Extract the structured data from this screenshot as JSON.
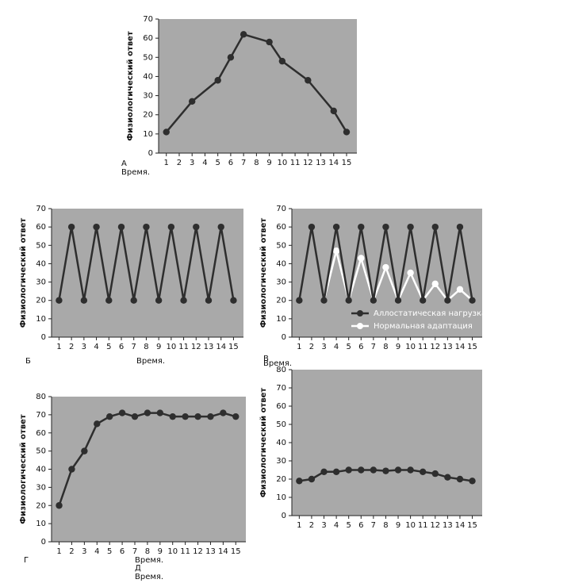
{
  "chart_data": [
    {
      "type": "line",
      "label": "А",
      "x_label": "Время.",
      "y_label": "Физиологический ответ",
      "x": [
        1,
        3,
        5,
        6,
        7,
        9,
        10,
        12,
        14,
        15
      ],
      "values": [
        11,
        27,
        38,
        50,
        62,
        58,
        48,
        38,
        22,
        11
      ],
      "color": "#2e2e2e",
      "xlim": [
        0.4,
        15.8
      ],
      "xticks": [
        1,
        2,
        3,
        4,
        5,
        6,
        7,
        8,
        9,
        10,
        11,
        12,
        13,
        14,
        15
      ],
      "ylim": [
        0,
        70
      ],
      "yticks": [
        0,
        10,
        20,
        30,
        40,
        50,
        60,
        70
      ]
    },
    {
      "type": "line",
      "label": "Б",
      "x_label": "Время.",
      "y_label": "Физиологический ответ",
      "x": [
        1,
        2,
        3,
        4,
        5,
        6,
        7,
        8,
        9,
        10,
        11,
        12,
        13,
        14,
        15
      ],
      "values": [
        20,
        60,
        20,
        60,
        20,
        60,
        20,
        60,
        20,
        60,
        20,
        60,
        20,
        60,
        20
      ],
      "color": "#2e2e2e",
      "xlim": [
        0.4,
        15.8
      ],
      "xticks": [
        1,
        2,
        3,
        4,
        5,
        6,
        7,
        8,
        9,
        10,
        11,
        12,
        13,
        14,
        15
      ],
      "ylim": [
        0,
        70
      ],
      "yticks": [
        0,
        10,
        20,
        30,
        40,
        50,
        60,
        70
      ]
    },
    {
      "type": "line",
      "label": "В",
      "x_label": "Время.",
      "y_label": "Физиологический ответ",
      "legend": "lower right",
      "x": [
        1,
        2,
        3,
        4,
        5,
        6,
        7,
        8,
        9,
        10,
        11,
        12,
        13,
        14,
        15
      ],
      "series": [
        {
          "name": "Аллостатическая нагрузка",
          "color": "#2e2e2e",
          "values": [
            20,
            60,
            20,
            60,
            20,
            60,
            20,
            60,
            20,
            60,
            20,
            60,
            20,
            60,
            20
          ]
        },
        {
          "name": "Нормальная адаптация",
          "color": "#ffffff",
          "values": [
            null,
            null,
            20,
            47,
            20,
            43,
            20,
            38,
            20,
            35,
            20,
            29,
            20,
            26,
            20
          ]
        }
      ],
      "xlim": [
        0.4,
        15.8
      ],
      "xticks": [
        1,
        2,
        3,
        4,
        5,
        6,
        7,
        8,
        9,
        10,
        11,
        12,
        13,
        14,
        15
      ],
      "ylim": [
        0,
        70
      ],
      "yticks": [
        0,
        10,
        20,
        30,
        40,
        50,
        60,
        70
      ]
    },
    {
      "type": "line",
      "label": "Г",
      "x_label": "Время.",
      "y_label": "Физиологический ответ",
      "x": [
        1,
        2,
        3,
        4,
        5,
        6,
        7,
        8,
        9,
        10,
        11,
        12,
        13,
        14,
        15
      ],
      "values": [
        20,
        40,
        50,
        65,
        69,
        71,
        69,
        71,
        71,
        69,
        69,
        69,
        69,
        71,
        69
      ],
      "color": "#2e2e2e",
      "xlim": [
        0.4,
        15.8
      ],
      "xticks": [
        1,
        2,
        3,
        4,
        5,
        6,
        7,
        8,
        9,
        10,
        11,
        12,
        13,
        14,
        15
      ],
      "ylim": [
        0,
        80
      ],
      "yticks": [
        0,
        10,
        20,
        30,
        40,
        50,
        60,
        70,
        80
      ]
    },
    {
      "type": "line",
      "label": "Д",
      "x_label": "Время.",
      "y_label": "Физиологический ответ",
      "x": [
        1,
        2,
        3,
        4,
        5,
        6,
        7,
        8,
        9,
        10,
        11,
        12,
        13,
        14,
        15
      ],
      "values": [
        19,
        20,
        24,
        24,
        25,
        25,
        25,
        24.5,
        25,
        25,
        24,
        23,
        21,
        20,
        19
      ],
      "color": "#2e2e2e",
      "xlim": [
        0.4,
        15.8
      ],
      "xticks": [
        1,
        2,
        3,
        4,
        5,
        6,
        7,
        8,
        9,
        10,
        11,
        12,
        13,
        14,
        15
      ],
      "ylim": [
        0,
        80
      ],
      "yticks": [
        0,
        10,
        20,
        30,
        40,
        50,
        60,
        70,
        80
      ]
    }
  ]
}
